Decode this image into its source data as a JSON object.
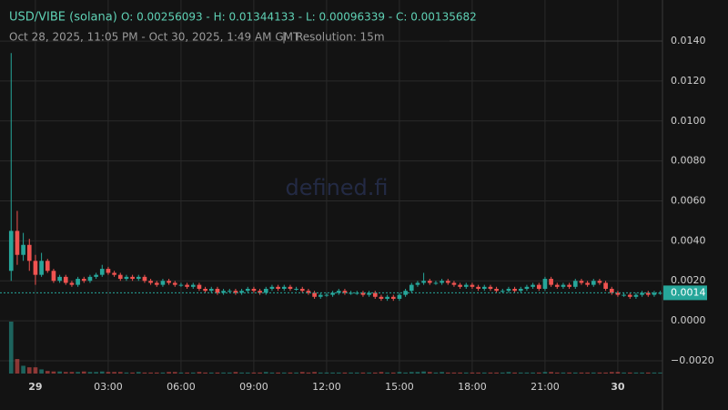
{
  "header": {
    "pair": "USD/VIBE (solana)",
    "ohlc": "O: 0.00256093 - H: 0.01344133 - L: 0.00096339 - C: 0.00135682",
    "range": "Oct 28, 2025, 11:05 PM - Oct 30, 2025, 1:49 AM GMT",
    "separator": "|",
    "resolution": "Resolution: 15m",
    "watermark": "defined.fi"
  },
  "chart_data": {
    "type": "candlestick",
    "up_color": "#26a69a",
    "down_color": "#ef5350",
    "grid": true,
    "x": [
      -1,
      -0.75,
      -0.5,
      -0.25,
      0,
      0.25,
      0.5,
      0.75,
      1,
      1.25,
      1.5,
      1.75,
      2,
      2.25,
      2.5,
      2.75,
      3,
      3.25,
      3.5,
      3.75,
      4,
      4.25,
      4.5,
      4.75,
      5,
      5.25,
      5.5,
      5.75,
      6,
      6.25,
      6.5,
      6.75,
      7,
      7.25,
      7.5,
      7.75,
      8,
      8.25,
      8.5,
      8.75,
      9,
      9.25,
      9.5,
      9.75,
      10,
      10.25,
      10.5,
      10.75,
      11,
      11.25,
      11.5,
      11.75,
      12,
      12.25,
      12.5,
      12.75,
      13,
      13.25,
      13.5,
      13.75,
      14,
      14.25,
      14.5,
      14.75,
      15,
      15.25,
      15.5,
      15.75,
      16,
      16.25,
      16.5,
      16.75,
      17,
      17.25,
      17.5,
      17.75,
      18,
      18.25,
      18.5,
      18.75,
      19,
      19.25,
      19.5,
      19.75,
      20,
      20.25,
      20.5,
      20.75,
      21,
      21.25,
      21.5,
      21.75,
      22,
      22.25,
      22.5,
      22.75,
      23,
      23.25,
      23.5,
      23.75,
      24,
      24.25,
      24.5,
      24.75,
      25,
      25.25,
      25.5,
      25.75
    ],
    "open": [
      0.0025,
      0.0045,
      0.0033,
      0.0038,
      0.003,
      0.0023,
      0.003,
      0.0025,
      0.002,
      0.0022,
      0.0019,
      0.0018,
      0.0021,
      0.002,
      0.0022,
      0.0023,
      0.0026,
      0.0024,
      0.0023,
      0.0021,
      0.0022,
      0.0021,
      0.0022,
      0.002,
      0.0019,
      0.0018,
      0.002,
      0.0019,
      0.0018,
      0.0018,
      0.0017,
      0.0018,
      0.0016,
      0.0015,
      0.0016,
      0.0014,
      0.0015,
      0.0015,
      0.0014,
      0.0015,
      0.0016,
      0.0015,
      0.0014,
      0.0016,
      0.0017,
      0.0016,
      0.0017,
      0.0016,
      0.0016,
      0.0015,
      0.0014,
      0.0012,
      0.0013,
      0.0013,
      0.0014,
      0.0015,
      0.0014,
      0.0014,
      0.0014,
      0.0013,
      0.0014,
      0.0012,
      0.0011,
      0.0012,
      0.0011,
      0.0013,
      0.0015,
      0.0018,
      0.0019,
      0.002,
      0.0019,
      0.0019,
      0.002,
      0.0019,
      0.0018,
      0.0017,
      0.0018,
      0.0017,
      0.0016,
      0.0017,
      0.0016,
      0.0015,
      0.0015,
      0.0016,
      0.0015,
      0.0016,
      0.0017,
      0.0018,
      0.0016,
      0.0021,
      0.0018,
      0.0017,
      0.0018,
      0.0017,
      0.002,
      0.0019,
      0.0018,
      0.002,
      0.0019,
      0.0016,
      0.0014,
      0.0013,
      0.0013,
      0.0012,
      0.0013,
      0.0014,
      0.0013,
      0.0014
    ],
    "high": [
      0.0134,
      0.0055,
      0.0044,
      0.0041,
      0.0033,
      0.0034,
      0.0031,
      0.0026,
      0.0023,
      0.0023,
      0.002,
      0.0022,
      0.0022,
      0.0023,
      0.0024,
      0.0028,
      0.0027,
      0.0025,
      0.0024,
      0.0023,
      0.0023,
      0.0023,
      0.0023,
      0.0021,
      0.002,
      0.0021,
      0.0021,
      0.002,
      0.0019,
      0.0019,
      0.0019,
      0.0019,
      0.0017,
      0.0017,
      0.0017,
      0.0016,
      0.0016,
      0.0016,
      0.0016,
      0.0017,
      0.0017,
      0.0016,
      0.0017,
      0.0018,
      0.0018,
      0.0018,
      0.0018,
      0.0017,
      0.0017,
      0.0016,
      0.0015,
      0.0014,
      0.0014,
      0.0015,
      0.0016,
      0.0016,
      0.0015,
      0.0015,
      0.0015,
      0.0015,
      0.0015,
      0.0013,
      0.0013,
      0.0013,
      0.0014,
      0.0016,
      0.0019,
      0.002,
      0.0024,
      0.0021,
      0.002,
      0.0021,
      0.0021,
      0.002,
      0.0019,
      0.0019,
      0.0019,
      0.0018,
      0.0018,
      0.0018,
      0.0017,
      0.0016,
      0.0017,
      0.0017,
      0.0017,
      0.0018,
      0.0019,
      0.0019,
      0.0022,
      0.0022,
      0.0019,
      0.0019,
      0.0019,
      0.0021,
      0.0021,
      0.002,
      0.0021,
      0.0021,
      0.002,
      0.0017,
      0.0015,
      0.0014,
      0.0014,
      0.0014,
      0.0015,
      0.0015,
      0.0015,
      0.0015
    ],
    "low": [
      0.002,
      0.0028,
      0.003,
      0.0025,
      0.0018,
      0.0022,
      0.0024,
      0.0019,
      0.0019,
      0.0018,
      0.0017,
      0.0017,
      0.0019,
      0.0019,
      0.0021,
      0.0022,
      0.0023,
      0.0022,
      0.002,
      0.002,
      0.002,
      0.002,
      0.0019,
      0.0018,
      0.0017,
      0.0017,
      0.0018,
      0.0017,
      0.0017,
      0.0016,
      0.0016,
      0.0015,
      0.0014,
      0.0014,
      0.0013,
      0.0013,
      0.0014,
      0.0013,
      0.0013,
      0.0014,
      0.0014,
      0.0013,
      0.0013,
      0.0015,
      0.0015,
      0.0015,
      0.0015,
      0.0015,
      0.0014,
      0.0013,
      0.0011,
      0.0011,
      0.0012,
      0.0012,
      0.0013,
      0.0013,
      0.0013,
      0.0013,
      0.0012,
      0.0012,
      0.0011,
      0.001,
      0.001,
      0.001,
      0.001,
      0.0012,
      0.0014,
      0.0017,
      0.0018,
      0.0018,
      0.0018,
      0.0018,
      0.0018,
      0.0017,
      0.0016,
      0.0016,
      0.0016,
      0.0015,
      0.0015,
      0.0015,
      0.0014,
      0.0014,
      0.0014,
      0.0014,
      0.0014,
      0.0015,
      0.0016,
      0.0015,
      0.0015,
      0.0017,
      0.0016,
      0.0016,
      0.0016,
      0.0016,
      0.0018,
      0.0017,
      0.0017,
      0.0018,
      0.0015,
      0.0013,
      0.0012,
      0.0012,
      0.0011,
      0.0011,
      0.0012,
      0.0012,
      0.0012,
      0.0013
    ],
    "close": [
      0.0045,
      0.0033,
      0.0038,
      0.003,
      0.0023,
      0.003,
      0.0025,
      0.002,
      0.0022,
      0.0019,
      0.0018,
      0.0021,
      0.002,
      0.0022,
      0.0023,
      0.0026,
      0.0024,
      0.0023,
      0.0021,
      0.0022,
      0.0021,
      0.0022,
      0.002,
      0.0019,
      0.0018,
      0.002,
      0.0019,
      0.0018,
      0.0018,
      0.0017,
      0.0018,
      0.0016,
      0.0015,
      0.0016,
      0.0014,
      0.0015,
      0.0015,
      0.0014,
      0.0015,
      0.0016,
      0.0015,
      0.0014,
      0.0016,
      0.0017,
      0.0016,
      0.0017,
      0.0016,
      0.0016,
      0.0015,
      0.0014,
      0.0012,
      0.0013,
      0.0013,
      0.0014,
      0.0015,
      0.0014,
      0.0014,
      0.0014,
      0.0013,
      0.0014,
      0.0012,
      0.0011,
      0.0012,
      0.0011,
      0.0013,
      0.0015,
      0.0018,
      0.0019,
      0.002,
      0.0019,
      0.0019,
      0.002,
      0.0019,
      0.0018,
      0.0017,
      0.0018,
      0.0017,
      0.0016,
      0.0017,
      0.0016,
      0.0015,
      0.0015,
      0.0016,
      0.0015,
      0.0016,
      0.0017,
      0.0018,
      0.0016,
      0.0021,
      0.0018,
      0.0017,
      0.0018,
      0.0017,
      0.002,
      0.0019,
      0.0018,
      0.002,
      0.0019,
      0.0016,
      0.0014,
      0.0013,
      0.0013,
      0.0012,
      0.0013,
      0.0014,
      0.0013,
      0.0014,
      0.0014
    ],
    "volume": [
      100,
      28,
      15,
      12,
      12,
      8,
      5,
      4,
      4,
      3,
      3,
      3,
      4,
      3,
      3,
      4,
      3,
      3,
      3,
      2,
      2,
      3,
      2,
      2,
      2,
      2,
      3,
      3,
      2,
      2,
      2,
      3,
      2,
      2,
      2,
      2,
      2,
      3,
      2,
      2,
      2,
      2,
      3,
      2,
      2,
      2,
      2,
      2,
      3,
      2,
      3,
      2,
      2,
      2,
      2,
      2,
      2,
      2,
      2,
      2,
      2,
      3,
      2,
      2,
      3,
      2,
      3,
      3,
      4,
      3,
      2,
      3,
      2,
      2,
      2,
      2,
      2,
      2,
      2,
      2,
      2,
      2,
      3,
      2,
      2,
      2,
      2,
      2,
      3,
      3,
      2,
      2,
      2,
      2,
      2,
      2,
      2,
      2,
      2,
      3,
      3,
      2,
      2,
      2,
      2,
      2,
      2,
      2
    ],
    "xlim": [
      -1.46,
      25.84
    ],
    "xticks": [
      {
        "value": 0,
        "label": "29"
      },
      {
        "value": 3,
        "label": "03:00"
      },
      {
        "value": 6,
        "label": "06:00"
      },
      {
        "value": 9,
        "label": "09:00"
      },
      {
        "value": 12,
        "label": "12:00"
      },
      {
        "value": 15,
        "label": "15:00"
      },
      {
        "value": 18,
        "label": "18:00"
      },
      {
        "value": 21,
        "label": "21:00"
      },
      {
        "value": 24,
        "label": "30"
      }
    ],
    "ylim": [
      -0.00264,
      0.01569
    ],
    "yticks": [
      {
        "value": 0.014,
        "label": "0.0140"
      },
      {
        "value": 0.012,
        "label": "0.0120"
      },
      {
        "value": 0.01,
        "label": "0.0100"
      },
      {
        "value": 0.008,
        "label": "0.0080"
      },
      {
        "value": 0.006,
        "label": "0.0060"
      },
      {
        "value": 0.004,
        "label": "0.0040"
      },
      {
        "value": 0.002,
        "label": "0.0020"
      },
      {
        "value": 0,
        "label": "0.0000"
      },
      {
        "value": -0.002,
        "label": "−0.0020"
      }
    ],
    "last_price": {
      "value": 0.0014,
      "label": "0.0014"
    }
  }
}
